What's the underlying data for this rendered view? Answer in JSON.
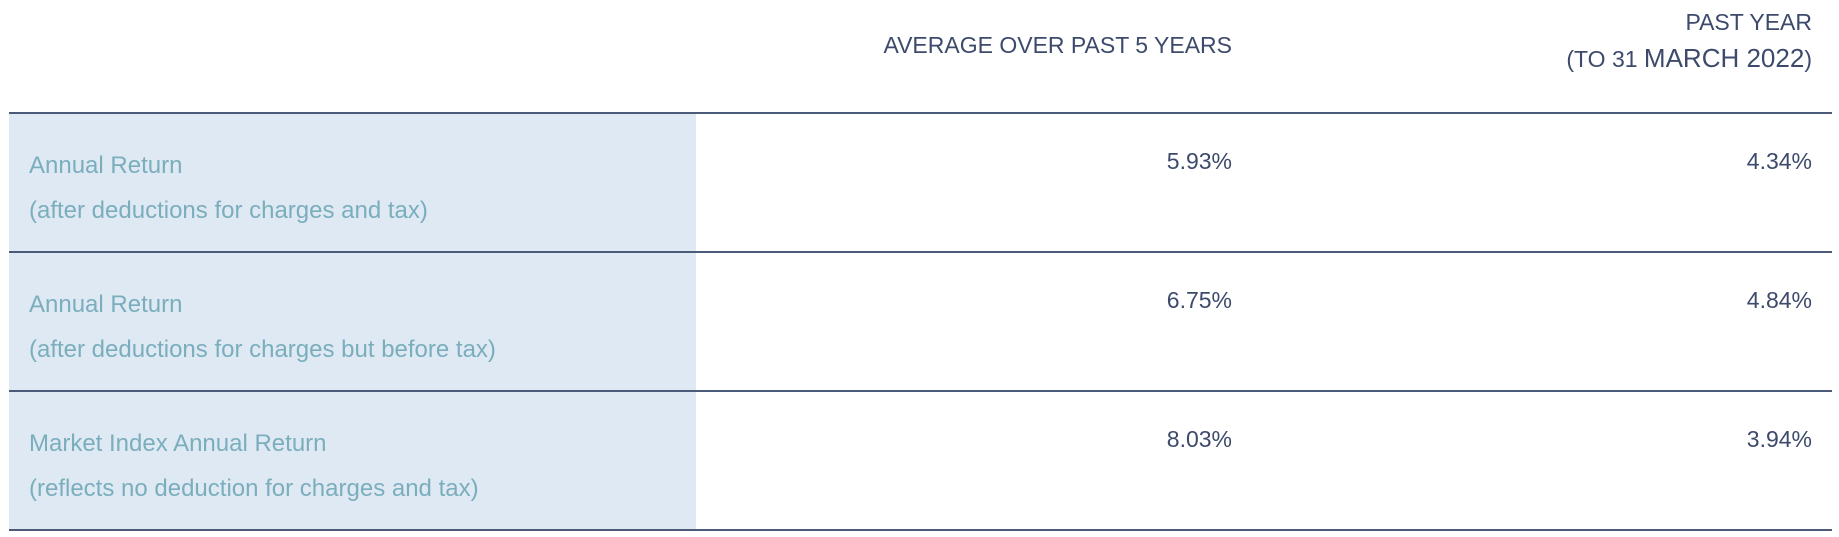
{
  "columns": {
    "avg_heading": "AVERAGE OVER PAST 5 YEARS",
    "past_heading_line1": "PAST YEAR",
    "past_heading_line2_prefix": "(TO 31 ",
    "past_heading_line2_big": "MARCH 2022",
    "past_heading_line2_suffix": ")"
  },
  "rows": [
    {
      "label": "Annual Return",
      "sublabel": "(after deductions for charges and tax)",
      "avg_value": "5.93%",
      "past_value": "4.34%"
    },
    {
      "label": "Annual Return",
      "sublabel": "(after deductions for charges but before tax)",
      "avg_value": "6.75%",
      "past_value": "4.84%"
    },
    {
      "label": "Market Index Annual Return",
      "sublabel": "(reflects no deduction for charges and tax)",
      "avg_value": "8.03%",
      "past_value": "3.94%"
    }
  ],
  "colors": {
    "label_text": "#7aaebd",
    "value_text": "#3d4a6b",
    "label_bg": "#dfe9f3",
    "rule": "#4c5a7a"
  }
}
